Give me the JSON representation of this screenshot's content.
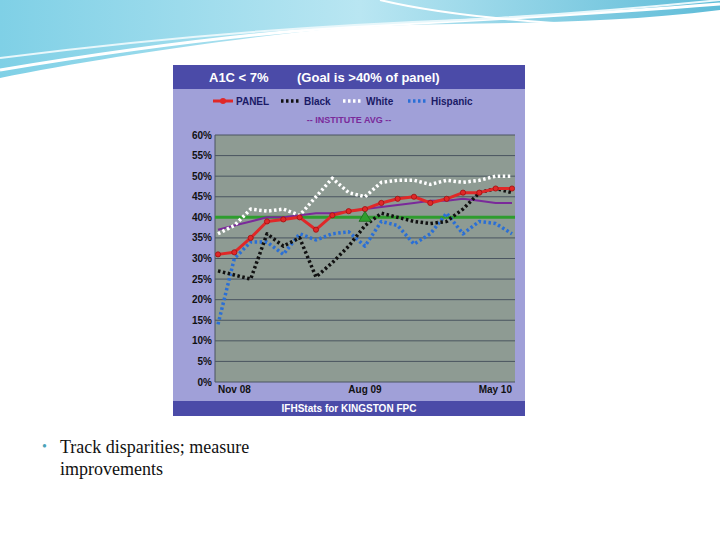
{
  "chart_data": {
    "type": "line",
    "title": "A1C < 7%",
    "subtitle": "(Goal is >40% of panel)",
    "caption": "IFHStats for KINGSTON FPC",
    "categories": [
      "Nov 08",
      null,
      null,
      null,
      null,
      null,
      null,
      null,
      null,
      "Aug 09",
      null,
      null,
      null,
      null,
      null,
      null,
      null,
      null,
      "May 10"
    ],
    "series": [
      {
        "name": "PANEL",
        "color": "#e02828",
        "line_style": "solid",
        "marker": "circle",
        "values": [
          31,
          31.5,
          35,
          39,
          39.5,
          40,
          37,
          40.5,
          41.5,
          42,
          43.5,
          44.5,
          45,
          43.5,
          44.5,
          46,
          46,
          47,
          47
        ]
      },
      {
        "name": "Black",
        "color": "#111111",
        "line_style": "dotted",
        "values": [
          27,
          26,
          25,
          36,
          33,
          35,
          25.5,
          29,
          33,
          38,
          41,
          40,
          39,
          38.5,
          39,
          42,
          46,
          47,
          46
        ]
      },
      {
        "name": "White",
        "color": "#ffffff",
        "line_style": "dotted",
        "values": [
          36,
          38,
          42,
          41.5,
          42,
          40.5,
          45,
          49.5,
          46,
          45,
          48.5,
          49,
          49,
          48,
          49,
          48.5,
          49,
          50,
          50
        ]
      },
      {
        "name": "Hispanic",
        "color": "#2a6fd6",
        "line_style": "dotted",
        "values": [
          14,
          30,
          34,
          34,
          31,
          36,
          34.5,
          36,
          36.5,
          33,
          39,
          38,
          33.5,
          36,
          41,
          36,
          39,
          38.5,
          36
        ]
      },
      {
        "name": "-- INSTITUTE AVG --",
        "color": "#7a2a9a",
        "line_style": "solid",
        "values": [
          37,
          38,
          39,
          40,
          40,
          40.5,
          41,
          41,
          41.5,
          42,
          42.5,
          43,
          43.5,
          44,
          44,
          44.5,
          44,
          43.5,
          43.5
        ]
      }
    ],
    "goal": {
      "value": 40,
      "color": "#2e9d2e",
      "marker": "triangle",
      "marker_x": "Aug 09"
    },
    "ylim": [
      0,
      60
    ],
    "yticks": [
      {
        "value": 0,
        "label": "0%"
      },
      {
        "value": 5,
        "label": "5%"
      },
      {
        "value": 10,
        "label": "10%"
      },
      {
        "value": 15,
        "label": "15%"
      },
      {
        "value": 20,
        "label": "20%"
      },
      {
        "value": 25,
        "label": "25%"
      },
      {
        "value": 30,
        "label": "30%"
      },
      {
        "value": 35,
        "label": "35%"
      },
      {
        "value": 40,
        "label": "40%"
      },
      {
        "value": 45,
        "label": "45%"
      },
      {
        "value": 50,
        "label": "50%"
      },
      {
        "value": 55,
        "label": "55%"
      },
      {
        "value": 60,
        "label": "60%"
      }
    ],
    "grid": true,
    "legend": "top"
  },
  "bullets": [
    "Track disparities; measure improvements"
  ]
}
